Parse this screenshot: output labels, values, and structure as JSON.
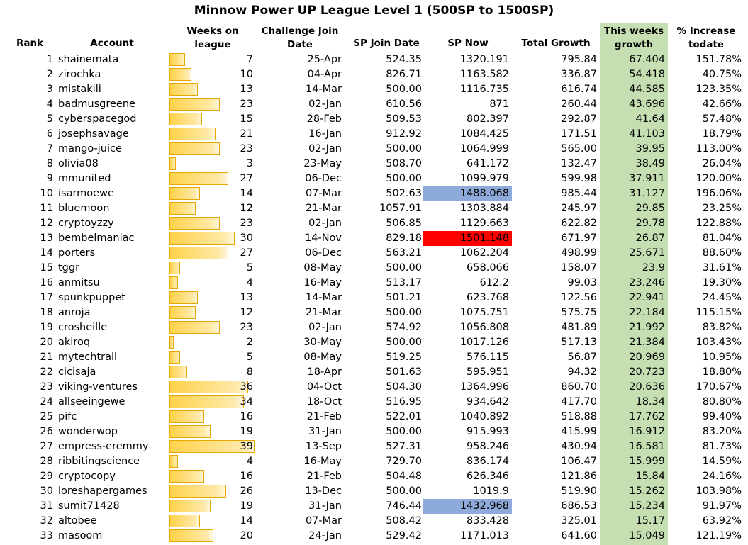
{
  "title": "Minnow Power UP League Level 1 (500SP to 1500SP)",
  "headers": {
    "rank": "Rank",
    "account": "Account",
    "weeks_l1": "Weeks on",
    "weeks_l2": "league",
    "join_l1": "Challenge Join",
    "join_l2": "Date",
    "sp_join": "SP Join Date",
    "sp_now": "SP Now",
    "total": "Total Growth",
    "week_l1": "This weeks",
    "week_l2": "growth",
    "inc_l1": "% Increase",
    "inc_l2": "todate"
  },
  "colors": {
    "green_column": "#c5dfb3",
    "blue_highlight": "#8eaadb",
    "red_highlight": "#ff0000",
    "bar_fill": "#ffd24a"
  },
  "rows": [
    {
      "rank": "1",
      "account": "shainemata",
      "weeks": "7",
      "join_date": "25-Apr",
      "sp_join": "524.35",
      "sp_now": "1320.191",
      "total_growth": "795.84",
      "week_growth": "67.404",
      "pct": "151.78%",
      "highlight": ""
    },
    {
      "rank": "2",
      "account": "zirochka",
      "weeks": "10",
      "join_date": "04-Apr",
      "sp_join": "826.71",
      "sp_now": "1163.582",
      "total_growth": "336.87",
      "week_growth": "54.418",
      "pct": "40.75%",
      "highlight": ""
    },
    {
      "rank": "3",
      "account": "mistakili",
      "weeks": "13",
      "join_date": "14-Mar",
      "sp_join": "500.00",
      "sp_now": "1116.735",
      "total_growth": "616.74",
      "week_growth": "44.585",
      "pct": "123.35%",
      "highlight": ""
    },
    {
      "rank": "4",
      "account": "badmusgreene",
      "weeks": "23",
      "join_date": "02-Jan",
      "sp_join": "610.56",
      "sp_now": "871",
      "total_growth": "260.44",
      "week_growth": "43.696",
      "pct": "42.66%",
      "highlight": ""
    },
    {
      "rank": "5",
      "account": "cyberspacegod",
      "weeks": "15",
      "join_date": "28-Feb",
      "sp_join": "509.53",
      "sp_now": "802.397",
      "total_growth": "292.87",
      "week_growth": "41.64",
      "pct": "57.48%",
      "highlight": ""
    },
    {
      "rank": "6",
      "account": "josephsavage",
      "weeks": "21",
      "join_date": "16-Jan",
      "sp_join": "912.92",
      "sp_now": "1084.425",
      "total_growth": "171.51",
      "week_growth": "41.103",
      "pct": "18.79%",
      "highlight": ""
    },
    {
      "rank": "7",
      "account": "mango-juice",
      "weeks": "23",
      "join_date": "02-Jan",
      "sp_join": "500.00",
      "sp_now": "1064.999",
      "total_growth": "565.00",
      "week_growth": "39.95",
      "pct": "113.00%",
      "highlight": ""
    },
    {
      "rank": "8",
      "account": "olivia08",
      "weeks": "3",
      "join_date": "23-May",
      "sp_join": "508.70",
      "sp_now": "641.172",
      "total_growth": "132.47",
      "week_growth": "38.49",
      "pct": "26.04%",
      "highlight": ""
    },
    {
      "rank": "9",
      "account": "mmunited",
      "weeks": "27",
      "join_date": "06-Dec",
      "sp_join": "500.00",
      "sp_now": "1099.979",
      "total_growth": "599.98",
      "week_growth": "37.911",
      "pct": "120.00%",
      "highlight": ""
    },
    {
      "rank": "10",
      "account": "isarmoewe",
      "weeks": "14",
      "join_date": "07-Mar",
      "sp_join": "502.63",
      "sp_now": "1488.068",
      "total_growth": "985.44",
      "week_growth": "31.127",
      "pct": "196.06%",
      "highlight": "blue"
    },
    {
      "rank": "11",
      "account": "bluemoon",
      "weeks": "12",
      "join_date": "21-Mar",
      "sp_join": "1057.91",
      "sp_now": "1303.884",
      "total_growth": "245.97",
      "week_growth": "29.85",
      "pct": "23.25%",
      "highlight": ""
    },
    {
      "rank": "12",
      "account": "cryptoyzzy",
      "weeks": "23",
      "join_date": "02-Jan",
      "sp_join": "506.85",
      "sp_now": "1129.663",
      "total_growth": "622.82",
      "week_growth": "29.78",
      "pct": "122.88%",
      "highlight": ""
    },
    {
      "rank": "13",
      "account": "bembelmaniac",
      "weeks": "30",
      "join_date": "14-Nov",
      "sp_join": "829.18",
      "sp_now": "1501.148",
      "total_growth": "671.97",
      "week_growth": "26.87",
      "pct": "81.04%",
      "highlight": "red"
    },
    {
      "rank": "14",
      "account": "porters",
      "weeks": "27",
      "join_date": "06-Dec",
      "sp_join": "563.21",
      "sp_now": "1062.204",
      "total_growth": "498.99",
      "week_growth": "25.671",
      "pct": "88.60%",
      "highlight": ""
    },
    {
      "rank": "15",
      "account": "tggr",
      "weeks": "5",
      "join_date": "08-May",
      "sp_join": "500.00",
      "sp_now": "658.066",
      "total_growth": "158.07",
      "week_growth": "23.9",
      "pct": "31.61%",
      "highlight": ""
    },
    {
      "rank": "16",
      "account": "anmitsu",
      "weeks": "4",
      "join_date": "16-May",
      "sp_join": "513.17",
      "sp_now": "612.2",
      "total_growth": "99.03",
      "week_growth": "23.246",
      "pct": "19.30%",
      "highlight": ""
    },
    {
      "rank": "17",
      "account": "spunkpuppet",
      "weeks": "13",
      "join_date": "14-Mar",
      "sp_join": "501.21",
      "sp_now": "623.768",
      "total_growth": "122.56",
      "week_growth": "22.941",
      "pct": "24.45%",
      "highlight": ""
    },
    {
      "rank": "18",
      "account": "anroja",
      "weeks": "12",
      "join_date": "21-Mar",
      "sp_join": "500.00",
      "sp_now": "1075.751",
      "total_growth": "575.75",
      "week_growth": "22.184",
      "pct": "115.15%",
      "highlight": ""
    },
    {
      "rank": "19",
      "account": "crosheille",
      "weeks": "23",
      "join_date": "02-Jan",
      "sp_join": "574.92",
      "sp_now": "1056.808",
      "total_growth": "481.89",
      "week_growth": "21.992",
      "pct": "83.82%",
      "highlight": ""
    },
    {
      "rank": "20",
      "account": "akiroq",
      "weeks": "2",
      "join_date": "30-May",
      "sp_join": "500.00",
      "sp_now": "1017.126",
      "total_growth": "517.13",
      "week_growth": "21.384",
      "pct": "103.43%",
      "highlight": ""
    },
    {
      "rank": "21",
      "account": "mytechtrail",
      "weeks": "5",
      "join_date": "08-May",
      "sp_join": "519.25",
      "sp_now": "576.115",
      "total_growth": "56.87",
      "week_growth": "20.969",
      "pct": "10.95%",
      "highlight": ""
    },
    {
      "rank": "22",
      "account": "cicisaja",
      "weeks": "8",
      "join_date": "18-Apr",
      "sp_join": "501.63",
      "sp_now": "595.951",
      "total_growth": "94.32",
      "week_growth": "20.723",
      "pct": "18.80%",
      "highlight": ""
    },
    {
      "rank": "23",
      "account": "viking-ventures",
      "weeks": "36",
      "join_date": "04-Oct",
      "sp_join": "504.30",
      "sp_now": "1364.996",
      "total_growth": "860.70",
      "week_growth": "20.636",
      "pct": "170.67%",
      "highlight": ""
    },
    {
      "rank": "24",
      "account": "allseeingewe",
      "weeks": "34",
      "join_date": "18-Oct",
      "sp_join": "516.95",
      "sp_now": "934.642",
      "total_growth": "417.70",
      "week_growth": "18.34",
      "pct": "80.80%",
      "highlight": ""
    },
    {
      "rank": "25",
      "account": "pifc",
      "weeks": "16",
      "join_date": "21-Feb",
      "sp_join": "522.01",
      "sp_now": "1040.892",
      "total_growth": "518.88",
      "week_growth": "17.762",
      "pct": "99.40%",
      "highlight": ""
    },
    {
      "rank": "26",
      "account": "wonderwop",
      "weeks": "19",
      "join_date": "31-Jan",
      "sp_join": "500.00",
      "sp_now": "915.993",
      "total_growth": "415.99",
      "week_growth": "16.912",
      "pct": "83.20%",
      "highlight": ""
    },
    {
      "rank": "27",
      "account": "empress-eremmy",
      "weeks": "39",
      "join_date": "13-Sep",
      "sp_join": "527.31",
      "sp_now": "958.246",
      "total_growth": "430.94",
      "week_growth": "16.581",
      "pct": "81.73%",
      "highlight": ""
    },
    {
      "rank": "28",
      "account": "ribbitingscience",
      "weeks": "4",
      "join_date": "16-May",
      "sp_join": "729.70",
      "sp_now": "836.174",
      "total_growth": "106.47",
      "week_growth": "15.999",
      "pct": "14.59%",
      "highlight": ""
    },
    {
      "rank": "29",
      "account": "cryptocopy",
      "weeks": "16",
      "join_date": "21-Feb",
      "sp_join": "504.48",
      "sp_now": "626.346",
      "total_growth": "121.86",
      "week_growth": "15.84",
      "pct": "24.16%",
      "highlight": ""
    },
    {
      "rank": "30",
      "account": "loreshapergames",
      "weeks": "26",
      "join_date": "13-Dec",
      "sp_join": "500.00",
      "sp_now": "1019.9",
      "total_growth": "519.90",
      "week_growth": "15.262",
      "pct": "103.98%",
      "highlight": ""
    },
    {
      "rank": "31",
      "account": "sumit71428",
      "weeks": "19",
      "join_date": "31-Jan",
      "sp_join": "746.44",
      "sp_now": "1432.968",
      "total_growth": "686.53",
      "week_growth": "15.234",
      "pct": "91.97%",
      "highlight": "blue"
    },
    {
      "rank": "32",
      "account": "altobee",
      "weeks": "14",
      "join_date": "07-Mar",
      "sp_join": "508.42",
      "sp_now": "833.428",
      "total_growth": "325.01",
      "week_growth": "15.17",
      "pct": "63.92%",
      "highlight": ""
    },
    {
      "rank": "33",
      "account": "masoom",
      "weeks": "20",
      "join_date": "24-Jan",
      "sp_join": "529.42",
      "sp_now": "1171.013",
      "total_growth": "641.60",
      "week_growth": "15.049",
      "pct": "121.19%",
      "highlight": ""
    }
  ]
}
